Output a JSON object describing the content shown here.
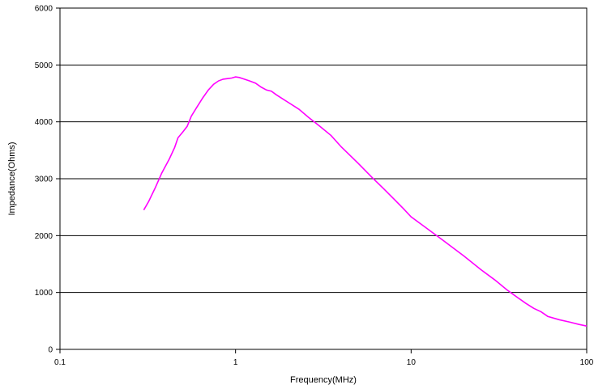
{
  "chart_data": {
    "type": "line",
    "title": "",
    "xlabel": "Frequency(MHz)",
    "ylabel": "Impedance(Ohms)",
    "x_scale": "log",
    "xlim": [
      0.1,
      100
    ],
    "ylim": [
      0,
      6000
    ],
    "x_tick_labels": [
      "0.1",
      "1",
      "10",
      "100"
    ],
    "y_tick_labels": [
      "0",
      "1000",
      "2000",
      "3000",
      "4000",
      "5000",
      "6000"
    ],
    "grid": "horizontal",
    "legend": "none",
    "series": [
      {
        "color": "#ff00ff",
        "x": [
          0.3,
          0.32,
          0.35,
          0.38,
          0.42,
          0.45,
          0.47,
          0.5,
          0.53,
          0.56,
          0.6,
          0.65,
          0.7,
          0.75,
          0.8,
          0.85,
          0.9,
          0.95,
          1.0,
          1.05,
          1.1,
          1.2,
          1.3,
          1.4,
          1.5,
          1.6,
          1.7,
          1.8,
          2.0,
          2.3,
          2.6,
          3.0,
          3.5,
          4.0,
          5.0,
          6.0,
          7.0,
          8.0,
          9.0,
          10,
          12,
          15,
          20,
          25,
          30,
          35,
          40,
          45,
          50,
          55,
          60,
          70,
          80,
          90,
          100
        ],
        "y": [
          2450,
          2600,
          2850,
          3100,
          3350,
          3550,
          3720,
          3820,
          3920,
          4100,
          4250,
          4420,
          4560,
          4660,
          4720,
          4750,
          4760,
          4770,
          4790,
          4780,
          4760,
          4720,
          4680,
          4610,
          4560,
          4540,
          4480,
          4430,
          4340,
          4220,
          4080,
          3930,
          3760,
          3560,
          3270,
          3020,
          2820,
          2640,
          2480,
          2330,
          2150,
          1930,
          1640,
          1400,
          1220,
          1050,
          920,
          810,
          720,
          660,
          580,
          520,
          480,
          440,
          410
        ]
      }
    ]
  }
}
